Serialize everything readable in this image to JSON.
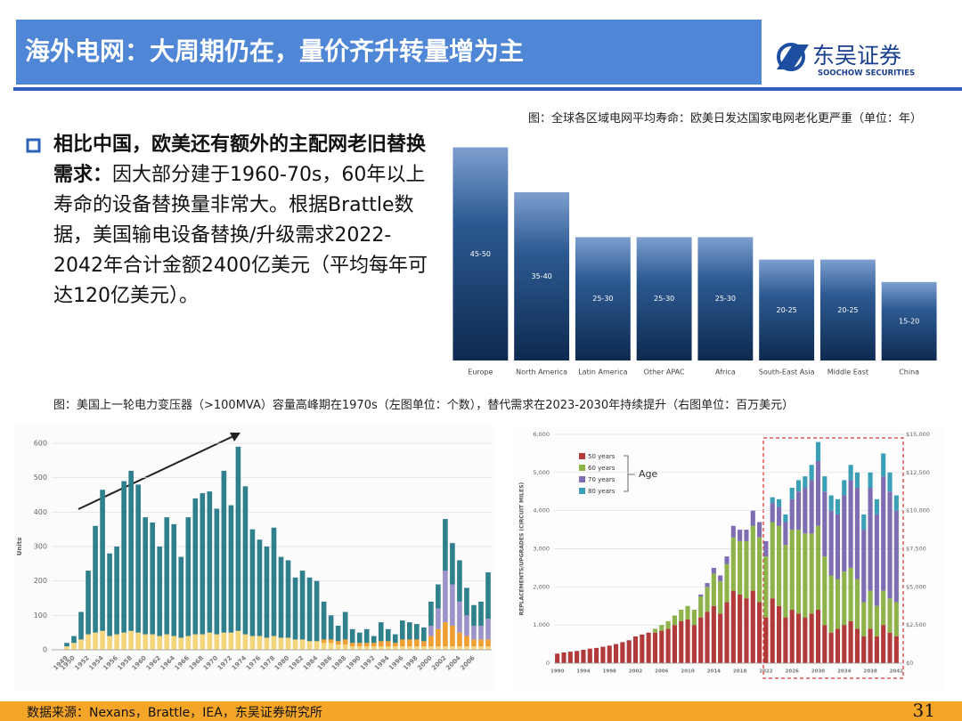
{
  "header": {
    "title": "海外电网：大周期仍在，量价齐升转量增为主",
    "logo_cn": "东吴证券",
    "logo_en": "SOOCHOW SECURITIES"
  },
  "bullet": {
    "bold": "相比中国，欧美还有额外的主配网老旧替换需求：",
    "text": "因大部分建于1960-70s，60年以上寿命的设备替换量非常大。根据Brattle数据，美国输电设备替换/升级需求2022-2042年合计金额2400亿美元（平均每年可达120亿美元）。"
  },
  "captions": [
    "图：全球各区域电网平均寿命：欧美日发达国家电网老化更严重（单位：年）",
    "图：美国上一轮电力变压器（>100MVA）容量高峰期在1970s（左图单位：个数），替代需求在2023-2030年持续提升（右图单位：百万美元）"
  ],
  "chart_data": [
    {
      "type": "bar",
      "categories": [
        "Europe",
        "North America",
        "Latin America",
        "Other APAC",
        "Africa",
        "South-East Asia",
        "Middle East",
        "China"
      ],
      "values": [
        47.5,
        37.5,
        27.5,
        27.5,
        27.5,
        22.5,
        22.5,
        17.5
      ],
      "value_labels": [
        "45-50",
        "35-40",
        "25-30",
        "25-30",
        "25-30",
        "20-25",
        "20-25",
        "15-20"
      ],
      "color": "#0d2a50",
      "ylim": [
        0,
        50
      ]
    },
    {
      "type": "stacked_bar",
      "ylabel": "Units",
      "categories": [
        "1949",
        "1950",
        null,
        "1952",
        null,
        "1954",
        null,
        "1956",
        null,
        "1958",
        null,
        "1960",
        null,
        "1962",
        null,
        "1964",
        null,
        "1966",
        null,
        "1968",
        null,
        "1970",
        null,
        "1972",
        null,
        "1974",
        null,
        "1976",
        null,
        "1978",
        null,
        "1980",
        null,
        "1982",
        null,
        "1984",
        null,
        "1986",
        null,
        "1988",
        null,
        "1990",
        null,
        "1992",
        null,
        "1994",
        null,
        "1996",
        null,
        "1998",
        null,
        "2000",
        null,
        "2002",
        null,
        "2004",
        null,
        "2006",
        null,
        null
      ],
      "series": [
        {
          "color": "#f5d67c",
          "values": [
            10,
            20,
            30,
            45,
            50,
            55,
            40,
            45,
            50,
            55,
            50,
            45,
            45,
            40,
            45,
            40,
            35,
            40,
            45,
            45,
            50,
            45,
            50,
            50,
            55,
            45,
            40,
            40,
            35,
            40,
            35,
            35,
            30,
            30,
            25,
            25,
            20,
            20,
            15,
            15,
            10,
            10,
            10,
            10,
            10,
            10,
            10,
            10,
            10,
            10,
            10,
            10,
            10,
            10,
            10,
            10,
            10,
            10,
            10,
            10
          ]
        },
        {
          "color": "#f0a032",
          "values": [
            0,
            0,
            0,
            0,
            0,
            0,
            0,
            0,
            0,
            0,
            0,
            0,
            0,
            0,
            0,
            0,
            0,
            0,
            0,
            0,
            0,
            0,
            0,
            0,
            0,
            0,
            0,
            0,
            0,
            0,
            0,
            0,
            0,
            0,
            0,
            0,
            10,
            10,
            10,
            15,
            10,
            10,
            10,
            10,
            15,
            15,
            10,
            20,
            20,
            20,
            15,
            30,
            50,
            70,
            60,
            40,
            30,
            20,
            20,
            20
          ]
        },
        {
          "color": "#9d92c9",
          "values": [
            0,
            0,
            0,
            0,
            0,
            0,
            0,
            0,
            0,
            0,
            0,
            0,
            0,
            0,
            0,
            0,
            0,
            0,
            0,
            0,
            0,
            0,
            0,
            0,
            0,
            0,
            0,
            0,
            0,
            0,
            0,
            0,
            0,
            0,
            0,
            0,
            0,
            0,
            0,
            0,
            0,
            0,
            0,
            0,
            0,
            0,
            0,
            0,
            0,
            0,
            0,
            30,
            60,
            150,
            120,
            90,
            60,
            40,
            40,
            60
          ]
        },
        {
          "color": "#2f7f8c",
          "values": [
            10,
            20,
            80,
            185,
            310,
            410,
            240,
            255,
            440,
            465,
            430,
            340,
            325,
            260,
            340,
            325,
            235,
            345,
            395,
            410,
            410,
            365,
            470,
            370,
            535,
            430,
            310,
            280,
            265,
            315,
            235,
            225,
            180,
            200,
            185,
            175,
            110,
            70,
            45,
            80,
            40,
            30,
            40,
            20,
            55,
            35,
            25,
            55,
            50,
            45,
            40,
            70,
            70,
            150,
            120,
            120,
            80,
            60,
            70,
            135
          ]
        }
      ],
      "ylim": [
        0,
        600
      ],
      "yticks": [
        0,
        100,
        200,
        300,
        400,
        500,
        600
      ],
      "grid": true
    },
    {
      "type": "stacked_bar",
      "ylabel": "REPLACEMENTS/UPGRADES (CIRCUIT MILES)",
      "legend_title": "Age",
      "legend": "top-left",
      "categories": [
        "1990",
        null,
        null,
        null,
        "1994",
        null,
        null,
        null,
        "1998",
        null,
        null,
        null,
        "2002",
        null,
        null,
        null,
        "2006",
        null,
        null,
        null,
        "2010",
        null,
        null,
        null,
        "2014",
        null,
        null,
        null,
        "2018",
        null,
        null,
        null,
        "2022",
        null,
        null,
        null,
        "2026",
        null,
        null,
        null,
        "2030",
        null,
        null,
        null,
        "2034",
        null,
        null,
        null,
        "2038",
        null,
        null,
        null,
        "2042"
      ],
      "series": [
        {
          "name": "50 years",
          "color": "#b23a3a",
          "values": [
            250,
            280,
            300,
            320,
            350,
            380,
            400,
            430,
            460,
            500,
            550,
            600,
            700,
            750,
            800,
            800,
            850,
            900,
            1000,
            1100,
            1150,
            1000,
            1200,
            1350,
            1500,
            1300,
            1600,
            1900,
            1800,
            1700,
            1900,
            1600,
            1200,
            1700,
            1500,
            1200,
            1400,
            1300,
            1200,
            1300,
            1400,
            1000,
            800,
            900,
            1000,
            1100,
            900,
            700,
            900,
            700,
            1000,
            800,
            700
          ]
        },
        {
          "name": "60 years",
          "color": "#8db34a",
          "values": [
            0,
            0,
            0,
            0,
            0,
            0,
            0,
            0,
            0,
            0,
            0,
            0,
            0,
            0,
            0,
            100,
            150,
            200,
            250,
            300,
            350,
            400,
            550,
            650,
            850,
            850,
            1000,
            1400,
            1400,
            1500,
            1700,
            1700,
            1600,
            2000,
            2100,
            1900,
            2100,
            2200,
            2200,
            2100,
            2200,
            1800,
            1500,
            1300,
            1400,
            1400,
            1300,
            900,
            1000,
            800,
            900,
            900,
            900
          ]
        },
        {
          "name": "70 years",
          "color": "#7e6db2",
          "values": [
            0,
            0,
            0,
            0,
            0,
            0,
            0,
            0,
            0,
            0,
            0,
            0,
            0,
            0,
            0,
            0,
            0,
            0,
            0,
            0,
            0,
            0,
            50,
            100,
            150,
            150,
            200,
            300,
            300,
            300,
            400,
            400,
            400,
            500,
            500,
            600,
            800,
            1000,
            1200,
            1400,
            1700,
            1700,
            1700,
            1700,
            2000,
            2300,
            2400,
            1900,
            2700,
            2400,
            3000,
            2800,
            2400
          ]
        },
        {
          "name": "80 years",
          "color": "#3ba0b6",
          "values": [
            0,
            0,
            0,
            0,
            0,
            0,
            0,
            0,
            0,
            0,
            0,
            0,
            0,
            0,
            0,
            0,
            0,
            0,
            0,
            0,
            0,
            0,
            0,
            0,
            0,
            0,
            0,
            0,
            0,
            0,
            0,
            0,
            0,
            150,
            200,
            200,
            300,
            300,
            300,
            400,
            500,
            400,
            400,
            400,
            400,
            400,
            400,
            400,
            400,
            400,
            600,
            500,
            400
          ]
        }
      ],
      "ylim": [
        0,
        6000
      ],
      "yticks": [
        0,
        {
          "value": 1000,
          "label": "1,000"
        },
        {
          "value": 2000,
          "label": "2,000"
        },
        {
          "value": 3000,
          "label": "3,000"
        },
        {
          "value": 4000,
          "label": "4,000"
        },
        {
          "value": 5000,
          "label": "5,000"
        },
        {
          "value": 6000,
          "label": "6,000"
        }
      ],
      "y2lim": [
        0,
        15000
      ],
      "y2ticks": [
        {
          "value": 0,
          "label": "$0"
        },
        {
          "value": 2500,
          "label": "$2,500"
        },
        {
          "value": 5000,
          "label": "$5,000"
        },
        {
          "value": 7500,
          "label": "$7,500"
        },
        {
          "value": 10000,
          "label": "$10,000"
        },
        {
          "value": 12500,
          "label": "$12,500"
        },
        {
          "value": 15000,
          "label": "$15,000"
        }
      ],
      "grid": true
    }
  ],
  "footer": {
    "source": "数据来源：Nexans，Brattle，IEA，东吴证券研究所",
    "page": "31"
  }
}
